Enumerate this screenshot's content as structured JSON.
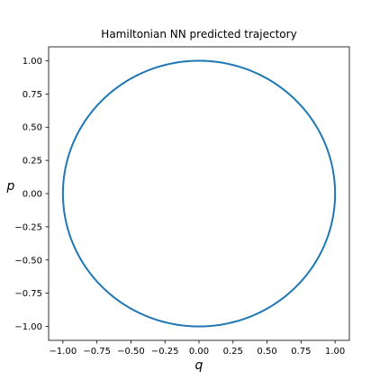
{
  "chart_data": {
    "type": "line",
    "title": "Hamiltonian NN predicted trajectory",
    "xlabel": "q",
    "ylabel": "p",
    "xlim": [
      -1.105,
      1.105
    ],
    "ylim": [
      -1.105,
      1.105
    ],
    "xticks": [
      -1.0,
      -0.75,
      -0.5,
      -0.25,
      0.0,
      0.25,
      0.5,
      0.75,
      1.0
    ],
    "xtick_labels": [
      "−1.00",
      "−0.75",
      "−0.50",
      "−0.25",
      "0.00",
      "0.25",
      "0.50",
      "0.75",
      "1.00"
    ],
    "yticks": [
      1.0,
      0.75,
      0.5,
      0.25,
      0.0,
      -0.25,
      -0.5,
      -0.75,
      -1.0
    ],
    "ytick_labels": [
      "1.00",
      "0.75",
      "0.50",
      "0.25",
      "0.00",
      "−0.25",
      "−0.50",
      "−0.75",
      "−1.00"
    ],
    "grid": false,
    "series": [
      {
        "trajectory": "circle",
        "center": [
          0.0,
          0.0
        ],
        "radius": 1.0,
        "point_count": 200,
        "color": "#1f77b4"
      }
    ]
  }
}
